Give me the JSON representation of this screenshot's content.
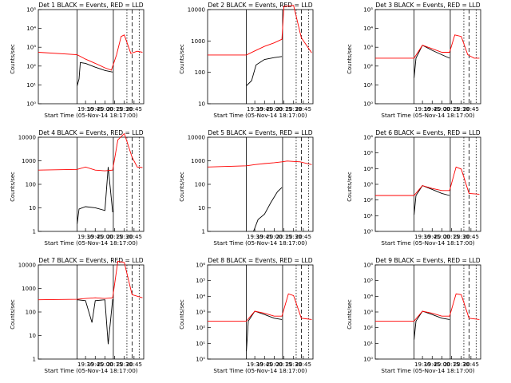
{
  "figure": {
    "colors": {
      "events": "#000000",
      "lld": "#ff0000",
      "axes": "#000000",
      "background": "#ffffff"
    },
    "markers": [
      {
        "time": "19:17",
        "style": "solid"
      },
      {
        "time": "20:13",
        "style": "solid"
      },
      {
        "time": "20:34",
        "style": "dotted"
      },
      {
        "time": "20:42",
        "style": "dashed"
      },
      {
        "time": "20:53",
        "style": "dotted"
      }
    ]
  },
  "chart_data": [
    {
      "type": "line",
      "title": "Det 1 BLACK = Events, RED = LLD",
      "xlabel": "Start Time (05-Nov-14 18:17:00)",
      "ylabel": "Counts/sec",
      "x_ticks": [
        "19:30",
        "19:45",
        "20:00",
        "20:15",
        "20:30",
        "20:45"
      ],
      "y_ticks": [
        "10⁰",
        "10¹",
        "10²",
        "10³",
        "10⁴",
        "10⁵"
      ],
      "ylim": [
        1,
        100000
      ],
      "log_y": true,
      "series": [
        {
          "name": "Events",
          "color": "#000000",
          "points": [
            [
              "19:17",
              8
            ],
            [
              "19:20",
              18
            ],
            [
              "19:22",
              120
            ],
            [
              "19:30",
              110
            ],
            [
              "19:45",
              70
            ],
            [
              "20:00",
              48
            ],
            [
              "20:12",
              40
            ]
          ]
        },
        {
          "name": "LLD",
          "color": "#ff0000",
          "points": [
            [
              "18:17",
              400
            ],
            [
              "19:17",
              300
            ],
            [
              "19:30",
              180
            ],
            [
              "19:45",
              110
            ],
            [
              "20:00",
              65
            ],
            [
              "20:10",
              50
            ],
            [
              "20:18",
              300
            ],
            [
              "20:25",
              2500
            ],
            [
              "20:30",
              3000
            ],
            [
              "20:40",
              350
            ],
            [
              "20:50",
              450
            ],
            [
              "20:58",
              400
            ]
          ]
        }
      ]
    },
    {
      "type": "line",
      "title": "Det 2 BLACK = Events, RED = LLD",
      "xlabel": "Start Time (05-Nov-14 18:17:00)",
      "ylabel": "Counts/sec",
      "x_ticks": [
        "19:30",
        "19:45",
        "20:00",
        "20:15",
        "20:30",
        "20:45"
      ],
      "y_ticks": [
        "10",
        "100",
        "1000",
        "10000"
      ],
      "ylim": [
        10,
        10000
      ],
      "log_y": true,
      "series": [
        {
          "name": "Events",
          "color": "#000000",
          "points": [
            [
              "19:17",
              35
            ],
            [
              "19:25",
              50
            ],
            [
              "19:32",
              150
            ],
            [
              "19:45",
              220
            ],
            [
              "20:00",
              250
            ],
            [
              "20:12",
              270
            ]
          ]
        },
        {
          "name": "LLD",
          "color": "#ff0000",
          "points": [
            [
              "18:17",
              300
            ],
            [
              "19:17",
              300
            ],
            [
              "19:30",
              400
            ],
            [
              "19:45",
              550
            ],
            [
              "20:00",
              700
            ],
            [
              "20:12",
              900
            ],
            [
              "20:15",
              9000
            ],
            [
              "20:30",
              9500
            ],
            [
              "20:42",
              1000
            ],
            [
              "20:58",
              350
            ]
          ]
        }
      ]
    },
    {
      "type": "line",
      "title": "Det 3 BLACK = Events, RED = LLD",
      "xlabel": "Start Time (05-Nov-14 18:17:00)",
      "ylabel": "Counts/sec",
      "x_ticks": [
        "19:30",
        "19:45",
        "20:00",
        "20:15",
        "20:30",
        "20:45"
      ],
      "y_ticks": [
        "10⁰",
        "10¹",
        "10²",
        "10³",
        "10⁴",
        "10⁵"
      ],
      "ylim": [
        1,
        100000
      ],
      "log_y": true,
      "series": [
        {
          "name": "Events",
          "color": "#000000",
          "points": [
            [
              "19:17",
              20
            ],
            [
              "19:20",
              200
            ],
            [
              "19:30",
              900
            ],
            [
              "19:45",
              500
            ],
            [
              "20:00",
              300
            ],
            [
              "20:12",
              200
            ]
          ]
        },
        {
          "name": "LLD",
          "color": "#ff0000",
          "points": [
            [
              "18:17",
              200
            ],
            [
              "19:17",
              200
            ],
            [
              "19:30",
              900
            ],
            [
              "19:45",
              600
            ],
            [
              "20:00",
              400
            ],
            [
              "20:12",
              400
            ],
            [
              "20:20",
              3000
            ],
            [
              "20:30",
              2500
            ],
            [
              "20:40",
              300
            ],
            [
              "20:50",
              200
            ],
            [
              "20:58",
              200
            ]
          ]
        }
      ]
    },
    {
      "type": "line",
      "title": "Det 4 BLACK = Events, RED = LLD",
      "xlabel": "Start Time (05-Nov-14 18:17:00)",
      "ylabel": "Counts/sec",
      "x_ticks": [
        "19:30",
        "19:45",
        "20:00",
        "20:15",
        "20:30",
        "20:45"
      ],
      "y_ticks": [
        "1",
        "10",
        "100",
        "1000",
        "10000"
      ],
      "ylim": [
        1,
        10000
      ],
      "log_y": true,
      "series": [
        {
          "name": "Events",
          "color": "#000000",
          "points": [
            [
              "19:17",
              2
            ],
            [
              "19:20",
              8
            ],
            [
              "19:30",
              10
            ],
            [
              "19:45",
              9
            ],
            [
              "20:00",
              7
            ],
            [
              "20:05",
              400
            ],
            [
              "20:12",
              6
            ]
          ]
        },
        {
          "name": "LLD",
          "color": "#ff0000",
          "points": [
            [
              "18:17",
              300
            ],
            [
              "19:17",
              320
            ],
            [
              "19:30",
              400
            ],
            [
              "19:45",
              300
            ],
            [
              "20:00",
              280
            ],
            [
              "20:12",
              300
            ],
            [
              "20:20",
              5000
            ],
            [
              "20:30",
              9000
            ],
            [
              "20:42",
              1000
            ],
            [
              "20:50",
              400
            ],
            [
              "20:58",
              380
            ]
          ]
        }
      ]
    },
    {
      "type": "line",
      "title": "Det 5 BLACK = Events, RED = LLD",
      "xlabel": "Start Time (05-Nov-14 18:17:00)",
      "ylabel": "Counts/sec",
      "x_ticks": [
        "19:30",
        "19:45",
        "20:00",
        "20:15",
        "20:30",
        "20:45"
      ],
      "y_ticks": [
        "1",
        "10",
        "100",
        "1000",
        "10000"
      ],
      "ylim": [
        1,
        10000
      ],
      "log_y": true,
      "series": [
        {
          "name": "Events",
          "color": "#000000",
          "points": [
            [
              "19:28",
              1
            ],
            [
              "19:35",
              3
            ],
            [
              "19:45",
              5
            ],
            [
              "19:55",
              15
            ],
            [
              "20:05",
              40
            ],
            [
              "20:12",
              60
            ]
          ]
        },
        {
          "name": "LLD",
          "color": "#ff0000",
          "points": [
            [
              "18:17",
              400
            ],
            [
              "19:17",
              450
            ],
            [
              "19:30",
              500
            ],
            [
              "19:45",
              550
            ],
            [
              "20:00",
              600
            ],
            [
              "20:12",
              650
            ],
            [
              "20:20",
              700
            ],
            [
              "20:40",
              650
            ],
            [
              "20:58",
              500
            ]
          ]
        }
      ]
    },
    {
      "type": "line",
      "title": "Det 6 BLACK = Events, RED = LLD",
      "xlabel": "Start Time (05-Nov-14 18:17:00)",
      "ylabel": "Counts/sec",
      "x_ticks": [
        "19:30",
        "19:45",
        "20:00",
        "20:15",
        "20:30",
        "20:45"
      ],
      "y_ticks": [
        "10⁰",
        "10¹",
        "10²",
        "10³",
        "10⁴",
        "10⁵",
        "10⁶"
      ],
      "ylim": [
        1,
        1000000
      ],
      "log_y": true,
      "series": [
        {
          "name": "Events",
          "color": "#000000",
          "points": [
            [
              "19:17",
              10
            ],
            [
              "19:20",
              150
            ],
            [
              "19:30",
              600
            ],
            [
              "19:45",
              350
            ],
            [
              "20:00",
              200
            ],
            [
              "20:12",
              150
            ]
          ]
        },
        {
          "name": "LLD",
          "color": "#ff0000",
          "points": [
            [
              "18:17",
              150
            ],
            [
              "19:17",
              150
            ],
            [
              "19:30",
              600
            ],
            [
              "19:45",
              400
            ],
            [
              "20:00",
              300
            ],
            [
              "20:12",
              300
            ],
            [
              "20:22",
              8000
            ],
            [
              "20:30",
              6000
            ],
            [
              "20:42",
              200
            ],
            [
              "20:58",
              180
            ]
          ]
        }
      ]
    },
    {
      "type": "line",
      "title": "Det 7 BLACK = Events, RED = LLD",
      "xlabel": "Start Time (05-Nov-14 18:17:00)",
      "ylabel": "Counts/sec",
      "x_ticks": [
        "19:30",
        "19:45",
        "20:00",
        "20:15",
        "20:30",
        "20:45"
      ],
      "y_ticks": [
        "1",
        "10",
        "100",
        "1000",
        "10000"
      ],
      "ylim": [
        1,
        10000
      ],
      "log_y": true,
      "series": [
        {
          "name": "Events",
          "color": "#000000",
          "points": [
            [
              "19:17",
              250
            ],
            [
              "19:30",
              230
            ],
            [
              "19:40",
              30
            ],
            [
              "19:45",
              230
            ],
            [
              "20:00",
              250
            ],
            [
              "20:05",
              4
            ],
            [
              "20:12",
              260
            ]
          ]
        },
        {
          "name": "LLD",
          "color": "#ff0000",
          "points": [
            [
              "18:17",
              250
            ],
            [
              "19:17",
              260
            ],
            [
              "19:30",
              280
            ],
            [
              "19:45",
              300
            ],
            [
              "20:00",
              280
            ],
            [
              "20:12",
              300
            ],
            [
              "20:20",
              9000
            ],
            [
              "20:30",
              8000
            ],
            [
              "20:42",
              400
            ],
            [
              "20:58",
              300
            ]
          ]
        }
      ]
    },
    {
      "type": "line",
      "title": "Det 8 BLACK = Events, RED = LLD",
      "xlabel": "Start Time (05-Nov-14 18:17:00)",
      "ylabel": "Counts/sec",
      "x_ticks": [
        "19:30",
        "19:45",
        "20:00",
        "20:15",
        "20:30",
        "20:45"
      ],
      "y_ticks": [
        "10⁰",
        "10¹",
        "10²",
        "10³",
        "10⁴",
        "10⁵",
        "10⁶"
      ],
      "ylim": [
        1,
        1000000
      ],
      "log_y": true,
      "series": [
        {
          "name": "Events",
          "color": "#000000",
          "points": [
            [
              "19:17",
              3
            ],
            [
              "19:20",
              200
            ],
            [
              "19:30",
              800
            ],
            [
              "19:45",
              500
            ],
            [
              "20:00",
              300
            ],
            [
              "20:12",
              250
            ]
          ]
        },
        {
          "name": "LLD",
          "color": "#ff0000",
          "points": [
            [
              "18:17",
              200
            ],
            [
              "19:17",
              200
            ],
            [
              "19:30",
              800
            ],
            [
              "19:45",
              600
            ],
            [
              "20:00",
              400
            ],
            [
              "20:12",
              400
            ],
            [
              "20:22",
              9000
            ],
            [
              "20:30",
              7000
            ],
            [
              "20:42",
              300
            ],
            [
              "20:58",
              250
            ]
          ]
        }
      ]
    },
    {
      "type": "line",
      "title": "Det 9 BLACK = Events, RED = LLD",
      "xlabel": "Start Time (05-Nov-14 18:17:00)",
      "ylabel": "Counts/sec",
      "x_ticks": [
        "19:30",
        "19:45",
        "20:00",
        "20:15",
        "20:30",
        "20:45"
      ],
      "y_ticks": [
        "10⁰",
        "10¹",
        "10²",
        "10³",
        "10⁴",
        "10⁵",
        "10⁶"
      ],
      "ylim": [
        1,
        1000000
      ],
      "log_y": true,
      "series": [
        {
          "name": "Events",
          "color": "#000000",
          "points": [
            [
              "19:17",
              15
            ],
            [
              "19:20",
              200
            ],
            [
              "19:30",
              800
            ],
            [
              "19:45",
              500
            ],
            [
              "20:00",
              300
            ],
            [
              "20:12",
              250
            ]
          ]
        },
        {
          "name": "LLD",
          "color": "#ff0000",
          "points": [
            [
              "18:17",
              200
            ],
            [
              "19:17",
              200
            ],
            [
              "19:30",
              800
            ],
            [
              "19:45",
              600
            ],
            [
              "20:00",
              400
            ],
            [
              "20:12",
              400
            ],
            [
              "20:22",
              9000
            ],
            [
              "20:30",
              8000
            ],
            [
              "20:42",
              300
            ],
            [
              "20:58",
              250
            ]
          ]
        }
      ]
    }
  ]
}
